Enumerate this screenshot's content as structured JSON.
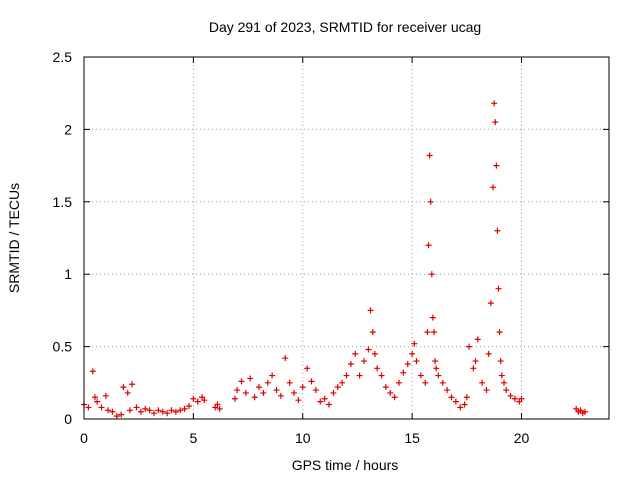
{
  "chart_data": {
    "type": "scatter",
    "title": "Day 291 of 2023, SRMTID for receiver ucag",
    "xlabel": "GPS time / hours",
    "ylabel": "SRMTID / TECUs",
    "xlim": [
      0,
      24
    ],
    "ylim": [
      0,
      2.5
    ],
    "xticks": [
      0,
      5,
      10,
      15,
      20
    ],
    "xtick_labels": [
      "0",
      "5",
      "10",
      "15",
      "20"
    ],
    "yticks": [
      0,
      0.5,
      1,
      1.5,
      2,
      2.5
    ],
    "ytick_labels": [
      "0",
      "0.5",
      "1",
      "1.5",
      "2",
      "2.5"
    ],
    "grid": true,
    "marker": "+",
    "series": [
      {
        "name": "SRMTID",
        "color": "#e00000",
        "x": [
          0.0,
          0.2,
          0.4,
          0.5,
          0.6,
          0.8,
          1.0,
          1.1,
          1.3,
          1.5,
          1.7,
          1.8,
          2.0,
          2.1,
          2.2,
          2.4,
          2.6,
          2.8,
          3.0,
          3.2,
          3.4,
          3.6,
          3.8,
          4.0,
          4.2,
          4.4,
          4.6,
          4.8,
          5.0,
          5.2,
          5.4,
          5.5,
          6.0,
          6.1,
          6.2,
          6.9,
          7.0,
          7.2,
          7.4,
          7.6,
          7.8,
          8.0,
          8.2,
          8.4,
          8.6,
          8.8,
          9.0,
          9.2,
          9.4,
          9.6,
          9.8,
          10.0,
          10.2,
          10.4,
          10.6,
          10.8,
          11.0,
          11.2,
          11.4,
          11.6,
          11.8,
          12.0,
          12.2,
          12.4,
          12.6,
          12.8,
          13.0,
          13.1,
          13.2,
          13.3,
          13.4,
          13.6,
          13.8,
          14.0,
          14.2,
          14.4,
          14.6,
          14.8,
          15.0,
          15.1,
          15.2,
          15.4,
          15.6,
          15.7,
          15.75,
          15.8,
          15.85,
          15.9,
          15.95,
          16.0,
          16.05,
          16.1,
          16.2,
          16.4,
          16.6,
          16.8,
          17.0,
          17.2,
          17.4,
          17.5,
          17.6,
          17.8,
          17.9,
          18.0,
          18.2,
          18.4,
          18.5,
          18.6,
          18.7,
          18.75,
          18.8,
          18.85,
          18.9,
          18.95,
          19.0,
          19.05,
          19.1,
          19.2,
          19.3,
          19.5,
          19.7,
          19.9,
          20.0,
          22.5,
          22.6,
          22.7,
          22.8,
          22.9
        ],
        "y": [
          0.1,
          0.08,
          0.33,
          0.15,
          0.12,
          0.08,
          0.16,
          0.06,
          0.05,
          0.02,
          0.03,
          0.22,
          0.18,
          0.06,
          0.24,
          0.08,
          0.05,
          0.07,
          0.06,
          0.04,
          0.06,
          0.05,
          0.04,
          0.06,
          0.05,
          0.06,
          0.07,
          0.09,
          0.14,
          0.12,
          0.15,
          0.13,
          0.08,
          0.1,
          0.07,
          0.14,
          0.2,
          0.26,
          0.18,
          0.28,
          0.15,
          0.22,
          0.18,
          0.25,
          0.3,
          0.2,
          0.16,
          0.42,
          0.25,
          0.18,
          0.13,
          0.22,
          0.35,
          0.26,
          0.2,
          0.12,
          0.14,
          0.1,
          0.18,
          0.22,
          0.25,
          0.3,
          0.38,
          0.45,
          0.3,
          0.4,
          0.48,
          0.75,
          0.6,
          0.45,
          0.35,
          0.3,
          0.22,
          0.18,
          0.15,
          0.25,
          0.32,
          0.38,
          0.45,
          0.52,
          0.4,
          0.3,
          0.25,
          0.6,
          1.2,
          1.82,
          1.5,
          1.0,
          0.7,
          0.6,
          0.4,
          0.35,
          0.3,
          0.25,
          0.2,
          0.15,
          0.12,
          0.08,
          0.1,
          0.15,
          0.5,
          0.35,
          0.4,
          0.55,
          0.25,
          0.2,
          0.45,
          0.8,
          1.6,
          2.18,
          2.05,
          1.75,
          1.3,
          0.9,
          0.6,
          0.4,
          0.3,
          0.25,
          0.2,
          0.16,
          0.14,
          0.12,
          0.14,
          0.07,
          0.05,
          0.06,
          0.04,
          0.05
        ]
      }
    ]
  }
}
